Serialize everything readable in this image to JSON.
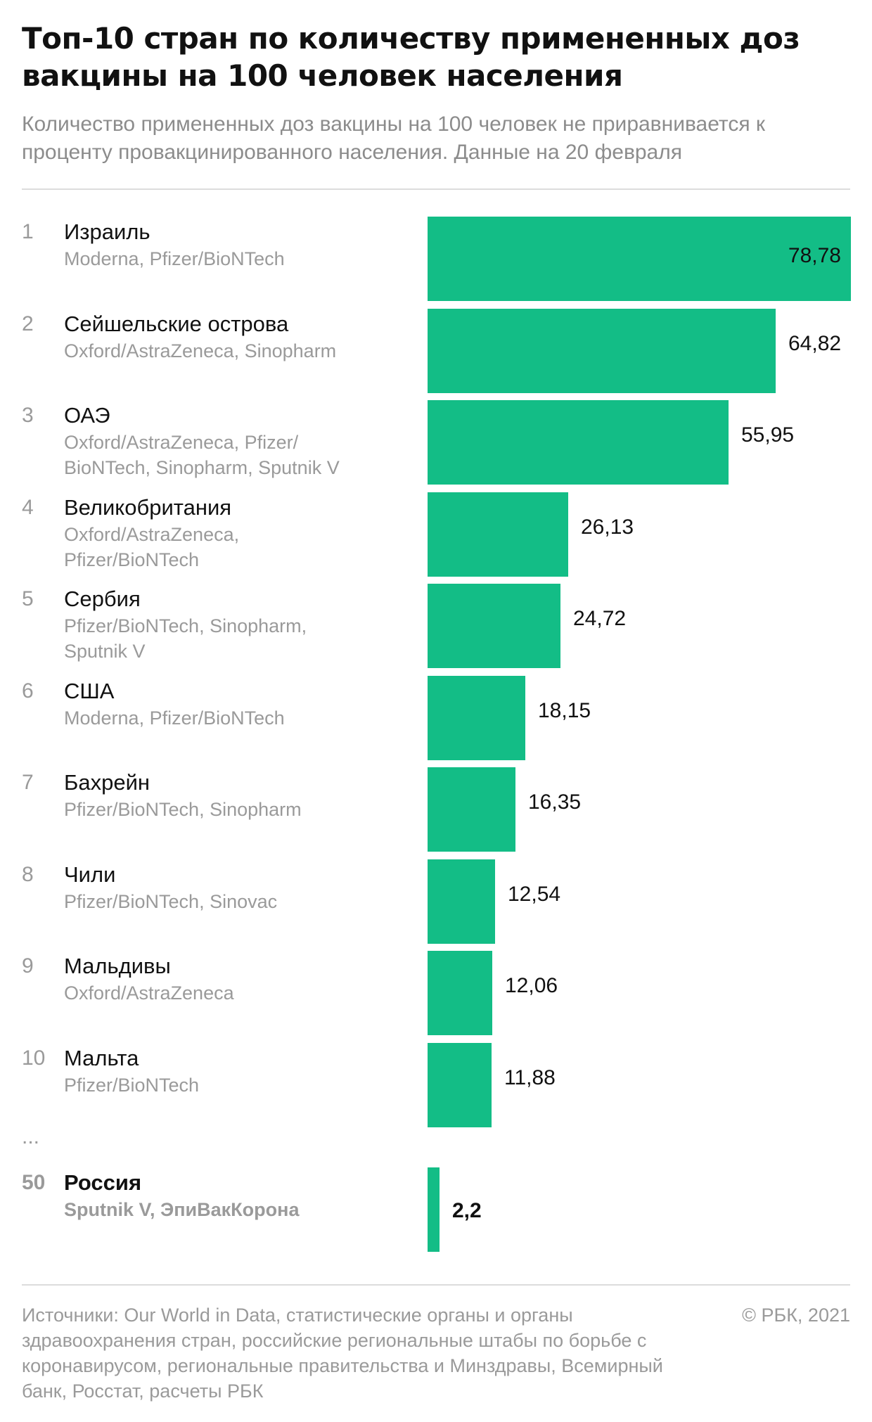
{
  "header": {
    "title": "Топ-10 стран по количеству примененных доз вакцины на 100 человек населения",
    "subtitle": "Количество примененных доз вакцины на 100 человек не приравнивается к проценту провакцинированного населения. Данные на 20 февраля"
  },
  "chart_data": {
    "type": "bar",
    "orientation": "horizontal",
    "title": "Топ-10 стран по количеству примененных доз вакцины на 100 человек населения",
    "xlim": [
      0,
      78.78
    ],
    "grid": false,
    "legend": "none",
    "bar_color": "#13bd86",
    "rows": [
      {
        "rank": "1",
        "country": "Израиль",
        "vaccines": "Moderna, Pfizer/BioNTech",
        "value": 78.78,
        "label": "78,78"
      },
      {
        "rank": "2",
        "country": "Сейшельские острова",
        "vaccines": "Oxford/AstraZeneca, Sinopharm",
        "value": 64.82,
        "label": "64,82"
      },
      {
        "rank": "3",
        "country": "ОАЭ",
        "vaccines": "Oxford/AstraZeneca, Pfizer/ BioNTech, Sinopharm, Sputnik V",
        "value": 55.95,
        "label": "55,95"
      },
      {
        "rank": "4",
        "country": "Великобритания",
        "vaccines": "Oxford/AstraZeneca, Pfizer/BioNTech",
        "value": 26.13,
        "label": "26,13"
      },
      {
        "rank": "5",
        "country": "Сербия",
        "vaccines": "Pfizer/BioNTech, Sinopharm, Sputnik V",
        "value": 24.72,
        "label": "24,72"
      },
      {
        "rank": "6",
        "country": "США",
        "vaccines": "Moderna, Pfizer/BioNTech",
        "value": 18.15,
        "label": "18,15"
      },
      {
        "rank": "7",
        "country": "Бахрейн",
        "vaccines": "Pfizer/BioNTech, Sinopharm",
        "value": 16.35,
        "label": "16,35"
      },
      {
        "rank": "8",
        "country": "Чили",
        "vaccines": "Pfizer/BioNTech, Sinovac",
        "value": 12.54,
        "label": "12,54"
      },
      {
        "rank": "9",
        "country": "Мальдивы",
        "vaccines": "Oxford/AstraZeneca",
        "value": 12.06,
        "label": "12,06"
      },
      {
        "rank": "10",
        "country": "Мальта",
        "vaccines": "Pfizer/BioNTech",
        "value": 11.88,
        "label": "11,88"
      },
      {
        "rank": "50",
        "country": "Россия",
        "vaccines": "Sputnik V, ЭпиВакКорона",
        "value": 2.2,
        "label": "2,2",
        "highlight": true
      }
    ],
    "ellipsis": "..."
  },
  "footer": {
    "source": "Источники: Our World in Data, статистические органы и органы здравоохранения стран, российские региональные штабы по борьбе с коронавирусом, региональные правительства и Минздравы, Всемирный банк, Росстат, расчеты РБК",
    "copyright": "© РБК, 2021"
  }
}
